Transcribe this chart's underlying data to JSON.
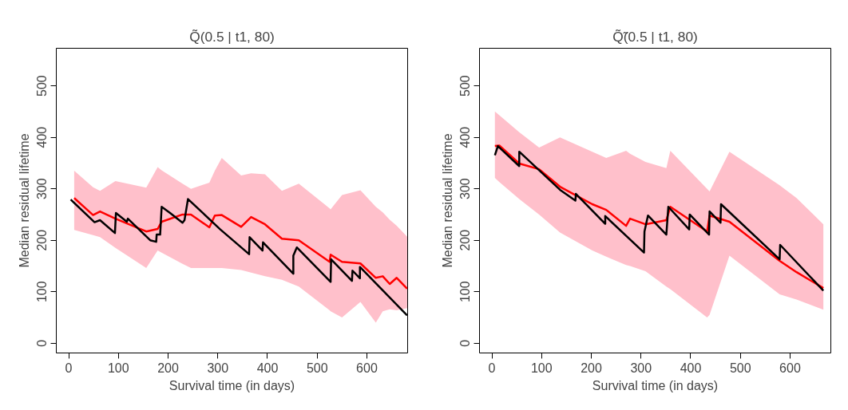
{
  "chart_data": [
    {
      "type": "line",
      "title": "Q̃(0.5 | t1, 80)",
      "xlabel": "Survival time (in days)",
      "ylabel": "Median residual lifetime",
      "xlim": [
        -25,
        682
      ],
      "ylim": [
        -19,
        573
      ],
      "xticks": [
        0,
        100,
        200,
        300,
        400,
        500,
        600
      ],
      "yticks": [
        0,
        100,
        200,
        300,
        400,
        500
      ],
      "grid": false,
      "line_style": "solid",
      "marker": "none",
      "series": [
        {
          "color": "#ff0000",
          "x": [
            11,
            49,
            63,
            94,
            156,
            179,
            187,
            229,
            246,
            283,
            294,
            308,
            347,
            367,
            395,
            429,
            463,
            525,
            527,
            550,
            587,
            618,
            632,
            646,
            660,
            681
          ],
          "values": [
            282,
            249,
            256,
            242,
            217,
            222,
            236,
            250,
            250,
            225,
            248,
            249,
            226,
            245,
            231,
            203,
            200,
            158,
            172,
            158,
            155,
            127,
            130,
            115,
            127,
            106
          ],
          "lower": [
            220,
            210,
            206,
            185,
            146,
            180,
            176,
            154,
            146,
            146,
            146,
            146,
            142,
            137,
            130,
            123,
            110,
            64,
            62,
            50,
            80,
            40,
            62,
            66,
            64,
            68
          ],
          "upper": [
            335,
            303,
            296,
            315,
            302,
            342,
            336,
            310,
            300,
            312,
            335,
            360,
            326,
            330,
            328,
            296,
            310,
            262,
            260,
            288,
            297,
            265,
            254,
            240,
            228,
            207
          ]
        },
        {
          "color": "#000000",
          "x": [
            4,
            52,
            63,
            93,
            95,
            117,
            119,
            164,
            176,
            177,
            184,
            187,
            204,
            229,
            233,
            240,
            271,
            305,
            363,
            364,
            390,
            391,
            452,
            452,
            459,
            527,
            528,
            570,
            571,
            586,
            586,
            681
          ],
          "values": [
            279,
            235,
            239,
            214,
            253,
            236,
            242,
            200,
            197,
            211,
            211,
            265,
            253,
            234,
            239,
            280,
            252,
            221,
            173,
            206,
            180,
            196,
            135,
            170,
            186,
            119,
            163,
            121,
            141,
            126,
            148,
            54
          ]
        }
      ]
    },
    {
      "type": "line",
      "title": "Q̃̃(0.5 | t1, 80)",
      "xlabel": "Survival time (in days)",
      "ylabel": "Median residual lifetime",
      "xlim": [
        -25,
        682
      ],
      "ylim": [
        -19,
        573
      ],
      "xticks": [
        0,
        100,
        200,
        300,
        400,
        500,
        600
      ],
      "yticks": [
        0,
        100,
        200,
        300,
        400,
        500
      ],
      "grid": false,
      "line_style": "solid",
      "marker": "none",
      "series": [
        {
          "color": "#ff0000",
          "x": [
            6,
            15,
            55,
            95,
            137,
            202,
            230,
            270,
            278,
            309,
            351,
            359,
            433,
            438,
            478,
            579,
            613,
            667
          ],
          "values": [
            383,
            384,
            349,
            338,
            304,
            270,
            259,
            228,
            242,
            231,
            239,
            265,
            217,
            248,
            236,
            160,
            138,
            107
          ],
          "lower": [
            321,
            313,
            280,
            250,
            215,
            180,
            168,
            152,
            150,
            140,
            110,
            105,
            50,
            55,
            170,
            95,
            85,
            65
          ],
          "upper": [
            450,
            443,
            410,
            380,
            400,
            372,
            360,
            374,
            368,
            352,
            340,
            374,
            300,
            295,
            372,
            307,
            282,
            231
          ]
        },
        {
          "color": "#000000",
          "x": [
            6,
            12,
            55,
            55,
            137,
            168,
            169,
            228,
            228,
            306,
            307,
            314,
            351,
            355,
            397,
            398,
            437,
            438,
            460,
            461,
            579,
            580,
            667
          ],
          "values": [
            365,
            383,
            344,
            372,
            298,
            277,
            290,
            232,
            247,
            176,
            217,
            248,
            211,
            265,
            221,
            250,
            211,
            256,
            234,
            270,
            163,
            191,
            102
          ]
        }
      ]
    }
  ]
}
